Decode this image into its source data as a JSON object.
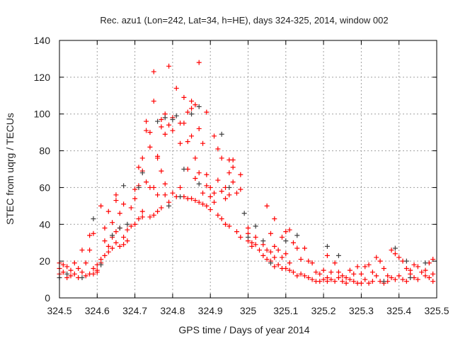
{
  "chart_data": {
    "type": "scatter",
    "title": "Rec. azu1 (Lon=242, Lat=34, h=HE), days 324-325, 2014, window 002",
    "xlabel": "GPS time / Days of year 2014",
    "ylabel": "STEC from uqrg / TECUs",
    "xlim": [
      324.5,
      325.5
    ],
    "ylim": [
      0,
      140
    ],
    "xticks": [
      324.5,
      324.6,
      324.7,
      324.8,
      324.9,
      325,
      325.1,
      325.2,
      325.3,
      325.4,
      325.5
    ],
    "xtick_labels": [
      "324.5",
      "324.6",
      "324.7",
      "324.8",
      "324.9",
      "325",
      "325.1",
      "325.2",
      "325.3",
      "325.4",
      "325.5"
    ],
    "yticks": [
      0,
      20,
      40,
      60,
      80,
      100,
      120,
      140
    ],
    "ytick_labels": [
      "0",
      "20",
      "40",
      "60",
      "80",
      "100",
      "120",
      "140"
    ],
    "grid": true,
    "marker": "plus",
    "series": [
      {
        "name": "series-red",
        "color": "#ff0000",
        "points": [
          [
            324.5,
            19
          ],
          [
            324.5,
            16
          ],
          [
            324.5,
            13
          ],
          [
            324.51,
            18
          ],
          [
            324.51,
            14
          ],
          [
            324.52,
            11
          ],
          [
            324.52,
            17
          ],
          [
            324.53,
            15
          ],
          [
            324.53,
            12
          ],
          [
            324.54,
            19
          ],
          [
            324.54,
            13
          ],
          [
            324.55,
            16
          ],
          [
            324.55,
            11
          ],
          [
            324.56,
            26
          ],
          [
            324.56,
            14
          ],
          [
            324.57,
            12
          ],
          [
            324.57,
            19
          ],
          [
            324.58,
            13
          ],
          [
            324.58,
            26
          ],
          [
            324.58,
            34
          ],
          [
            324.59,
            13
          ],
          [
            324.59,
            16
          ],
          [
            324.59,
            35
          ],
          [
            324.6,
            18
          ],
          [
            324.6,
            15
          ],
          [
            324.6,
            14
          ],
          [
            324.61,
            50
          ],
          [
            324.61,
            19
          ],
          [
            324.61,
            21
          ],
          [
            324.62,
            23
          ],
          [
            324.62,
            31
          ],
          [
            324.62,
            38
          ],
          [
            324.63,
            47
          ],
          [
            324.63,
            25
          ],
          [
            324.63,
            28
          ],
          [
            324.64,
            41
          ],
          [
            324.64,
            33
          ],
          [
            324.64,
            27
          ],
          [
            324.65,
            56
          ],
          [
            324.65,
            53
          ],
          [
            324.65,
            36
          ],
          [
            324.65,
            30
          ],
          [
            324.66,
            46
          ],
          [
            324.66,
            38
          ],
          [
            324.66,
            28
          ],
          [
            324.67,
            51
          ],
          [
            324.67,
            33
          ],
          [
            324.67,
            29
          ],
          [
            324.68,
            37
          ],
          [
            324.68,
            31
          ],
          [
            324.69,
            49
          ],
          [
            324.69,
            39
          ],
          [
            324.7,
            40
          ],
          [
            324.7,
            54
          ],
          [
            324.7,
            59
          ],
          [
            324.71,
            71
          ],
          [
            324.71,
            61
          ],
          [
            324.71,
            43
          ],
          [
            324.72,
            76
          ],
          [
            324.72,
            69
          ],
          [
            324.72,
            47
          ],
          [
            324.72,
            44
          ],
          [
            324.73,
            96
          ],
          [
            324.73,
            91
          ],
          [
            324.73,
            63
          ],
          [
            324.74,
            90
          ],
          [
            324.74,
            82
          ],
          [
            324.74,
            60
          ],
          [
            324.74,
            44
          ],
          [
            324.75,
            123
          ],
          [
            324.75,
            107
          ],
          [
            324.75,
            60
          ],
          [
            324.75,
            45
          ],
          [
            324.76,
            77
          ],
          [
            324.76,
            76
          ],
          [
            324.76,
            56
          ],
          [
            324.76,
            47
          ],
          [
            324.77,
            97
          ],
          [
            324.77,
            93
          ],
          [
            324.77,
            69
          ],
          [
            324.77,
            49
          ],
          [
            324.78,
            100
          ],
          [
            324.78,
            89
          ],
          [
            324.78,
            62
          ],
          [
            324.78,
            56
          ],
          [
            324.79,
            126
          ],
          [
            324.79,
            94
          ],
          [
            324.79,
            52
          ],
          [
            324.8,
            98
          ],
          [
            324.8,
            91
          ],
          [
            324.8,
            57
          ],
          [
            324.81,
            114
          ],
          [
            324.81,
            55
          ],
          [
            324.82,
            95
          ],
          [
            324.82,
            84
          ],
          [
            324.82,
            60
          ],
          [
            324.83,
            109
          ],
          [
            324.83,
            95
          ],
          [
            324.83,
            55
          ],
          [
            324.84,
            101
          ],
          [
            324.84,
            85
          ],
          [
            324.84,
            70
          ],
          [
            324.84,
            54
          ],
          [
            324.85,
            107
          ],
          [
            324.85,
            103
          ],
          [
            324.85,
            88
          ],
          [
            324.85,
            54
          ],
          [
            324.86,
            105
          ],
          [
            324.86,
            76
          ],
          [
            324.86,
            65
          ],
          [
            324.86,
            53
          ],
          [
            324.87,
            128
          ],
          [
            324.87,
            92
          ],
          [
            324.87,
            68
          ],
          [
            324.87,
            52
          ],
          [
            324.88,
            84
          ],
          [
            324.88,
            57
          ],
          [
            324.88,
            51
          ],
          [
            324.89,
            101
          ],
          [
            324.89,
            67
          ],
          [
            324.89,
            61
          ],
          [
            324.89,
            50
          ],
          [
            324.9,
            60
          ],
          [
            324.9,
            55
          ],
          [
            324.9,
            48
          ],
          [
            324.91,
            88
          ],
          [
            324.91,
            57
          ],
          [
            324.91,
            52
          ],
          [
            324.92,
            81
          ],
          [
            324.92,
            64
          ],
          [
            324.92,
            45
          ],
          [
            324.93,
            76
          ],
          [
            324.93,
            58
          ],
          [
            324.93,
            43
          ],
          [
            324.94,
            60
          ],
          [
            324.94,
            54
          ],
          [
            324.94,
            40
          ],
          [
            324.95,
            75
          ],
          [
            324.95,
            68
          ],
          [
            324.95,
            56
          ],
          [
            324.95,
            39
          ],
          [
            324.96,
            75
          ],
          [
            324.96,
            71
          ],
          [
            324.96,
            63
          ],
          [
            324.97,
            57
          ],
          [
            324.97,
            36
          ],
          [
            324.98,
            67
          ],
          [
            324.98,
            59
          ],
          [
            324.98,
            33
          ],
          [
            325.0,
            38
          ],
          [
            325.0,
            35
          ],
          [
            325.0,
            31
          ],
          [
            325.01,
            30
          ],
          [
            325.01,
            28
          ],
          [
            325.02,
            33
          ],
          [
            325.02,
            29
          ],
          [
            325.03,
            26
          ],
          [
            325.04,
            29
          ],
          [
            325.04,
            23
          ],
          [
            325.05,
            50
          ],
          [
            325.05,
            26
          ],
          [
            325.05,
            21
          ],
          [
            325.06,
            35
          ],
          [
            325.06,
            25
          ],
          [
            325.06,
            20
          ],
          [
            325.07,
            43
          ],
          [
            325.07,
            28
          ],
          [
            325.07,
            22
          ],
          [
            325.07,
            17
          ],
          [
            325.08,
            26
          ],
          [
            325.08,
            18
          ],
          [
            325.09,
            33
          ],
          [
            325.09,
            22
          ],
          [
            325.09,
            16
          ],
          [
            325.1,
            36
          ],
          [
            325.1,
            24
          ],
          [
            325.1,
            16
          ],
          [
            325.11,
            37
          ],
          [
            325.11,
            19
          ],
          [
            325.11,
            15
          ],
          [
            325.12,
            30
          ],
          [
            325.12,
            14
          ],
          [
            325.13,
            27
          ],
          [
            325.13,
            12
          ],
          [
            325.14,
            21
          ],
          [
            325.14,
            13
          ],
          [
            325.15,
            27
          ],
          [
            325.15,
            12
          ],
          [
            325.16,
            20
          ],
          [
            325.16,
            11
          ],
          [
            325.17,
            19
          ],
          [
            325.17,
            10
          ],
          [
            325.18,
            14
          ],
          [
            325.18,
            9
          ],
          [
            325.19,
            13
          ],
          [
            325.19,
            9
          ],
          [
            325.2,
            15
          ],
          [
            325.2,
            10
          ],
          [
            325.21,
            23
          ],
          [
            325.21,
            11
          ],
          [
            325.21,
            9
          ],
          [
            325.22,
            14
          ],
          [
            325.22,
            10
          ],
          [
            325.23,
            19
          ],
          [
            325.23,
            9
          ],
          [
            325.24,
            14
          ],
          [
            325.24,
            11
          ],
          [
            325.25,
            9
          ],
          [
            325.25,
            12
          ],
          [
            325.26,
            11
          ],
          [
            325.26,
            8
          ],
          [
            325.27,
            15
          ],
          [
            325.27,
            10
          ],
          [
            325.28,
            13
          ],
          [
            325.28,
            9
          ],
          [
            325.29,
            17
          ],
          [
            325.29,
            8
          ],
          [
            325.3,
            13
          ],
          [
            325.3,
            8
          ],
          [
            325.31,
            17
          ],
          [
            325.31,
            10
          ],
          [
            325.32,
            18
          ],
          [
            325.32,
            8
          ],
          [
            325.33,
            14
          ],
          [
            325.33,
            9
          ],
          [
            325.34,
            22
          ],
          [
            325.34,
            12
          ],
          [
            325.35,
            20
          ],
          [
            325.35,
            9
          ],
          [
            325.36,
            16
          ],
          [
            325.36,
            8
          ],
          [
            325.37,
            12
          ],
          [
            325.37,
            9
          ],
          [
            325.38,
            26
          ],
          [
            325.38,
            11
          ],
          [
            325.39,
            24
          ],
          [
            325.39,
            10
          ],
          [
            325.4,
            22
          ],
          [
            325.4,
            12
          ],
          [
            325.41,
            20
          ],
          [
            325.41,
            10
          ],
          [
            325.42,
            16
          ],
          [
            325.42,
            9
          ],
          [
            325.43,
            15
          ],
          [
            325.43,
            13
          ],
          [
            325.44,
            18
          ],
          [
            325.44,
            11
          ],
          [
            325.45,
            17
          ],
          [
            325.45,
            10
          ],
          [
            325.46,
            14
          ],
          [
            325.47,
            15
          ],
          [
            325.47,
            12
          ],
          [
            325.48,
            19
          ],
          [
            325.48,
            11
          ],
          [
            325.49,
            21
          ],
          [
            325.49,
            13
          ],
          [
            325.49,
            9
          ]
        ]
      },
      {
        "name": "series-gray",
        "color": "#404040",
        "points": [
          [
            324.5,
            11
          ],
          [
            324.52,
            13
          ],
          [
            324.56,
            11
          ],
          [
            324.59,
            43
          ],
          [
            324.61,
            18
          ],
          [
            324.64,
            34
          ],
          [
            324.66,
            38
          ],
          [
            324.67,
            61
          ],
          [
            324.68,
            40
          ],
          [
            324.71,
            60
          ],
          [
            324.72,
            68
          ],
          [
            324.76,
            96
          ],
          [
            324.78,
            98
          ],
          [
            324.79,
            50
          ],
          [
            324.8,
            97
          ],
          [
            324.81,
            99
          ],
          [
            324.82,
            55
          ],
          [
            324.83,
            70
          ],
          [
            324.85,
            100
          ],
          [
            324.87,
            104
          ],
          [
            324.87,
            62
          ],
          [
            324.93,
            89
          ],
          [
            324.95,
            60
          ],
          [
            324.99,
            46
          ],
          [
            325.0,
            33
          ],
          [
            325.02,
            39
          ],
          [
            325.04,
            31
          ],
          [
            325.06,
            19
          ],
          [
            325.1,
            31
          ],
          [
            325.13,
            34
          ],
          [
            325.21,
            28
          ],
          [
            325.24,
            23
          ],
          [
            325.36,
            9
          ],
          [
            325.39,
            27
          ],
          [
            325.42,
            20
          ],
          [
            325.43,
            11
          ],
          [
            325.47,
            19
          ]
        ]
      }
    ]
  }
}
